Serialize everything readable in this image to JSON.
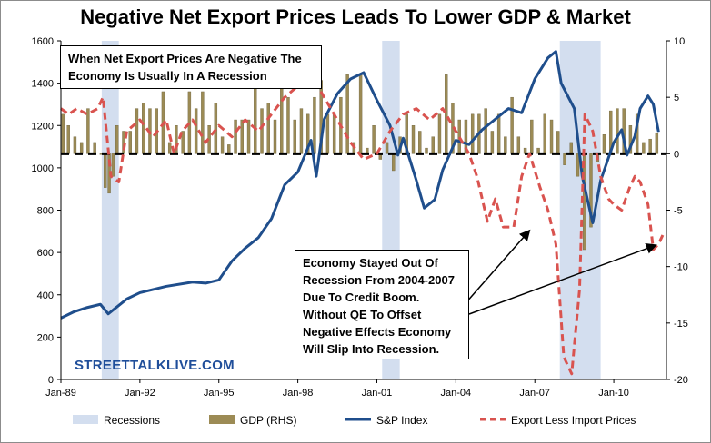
{
  "chart_data": {
    "type": "line",
    "title": "Negative Net Export Prices Leads To Lower GDP & Market",
    "x_range": [
      "1989-01",
      "2011-12"
    ],
    "x_ticks": [
      "Jan-89",
      "Jan-92",
      "Jan-95",
      "Jan-98",
      "Jan-01",
      "Jan-04",
      "Jan-07",
      "Jan-10"
    ],
    "y_left": {
      "range": [
        0,
        1600
      ],
      "ticks": [
        "0",
        "200",
        "400",
        "600",
        "800",
        "1000",
        "1200",
        "1400",
        "1600"
      ]
    },
    "y_right": {
      "range": [
        -20,
        10
      ],
      "ticks": [
        "-20",
        "-15",
        "-10",
        "-5",
        "0",
        "5",
        "10"
      ]
    },
    "zero_line_right": 0,
    "grid": false,
    "legend_position": "bottom",
    "colors": {
      "recession": "#d3deef",
      "gdp": "#9c8b55",
      "sp": "#1f4e8c",
      "export": "#d9534f"
    },
    "recessions": [
      {
        "start": 1990.55,
        "end": 1991.2
      },
      {
        "start": 2001.2,
        "end": 2001.87
      },
      {
        "start": 2007.95,
        "end": 2009.5
      }
    ],
    "series": [
      {
        "name": "S&P Index",
        "axis": "left",
        "style": "solid",
        "points": [
          [
            1989.0,
            290
          ],
          [
            1989.5,
            320
          ],
          [
            1990.0,
            340
          ],
          [
            1990.5,
            355
          ],
          [
            1990.8,
            310
          ],
          [
            1991.0,
            330
          ],
          [
            1991.5,
            380
          ],
          [
            1992.0,
            410
          ],
          [
            1993.0,
            440
          ],
          [
            1994.0,
            460
          ],
          [
            1994.5,
            455
          ],
          [
            1995.0,
            470
          ],
          [
            1995.5,
            560
          ],
          [
            1996.0,
            620
          ],
          [
            1996.5,
            670
          ],
          [
            1997.0,
            760
          ],
          [
            1997.5,
            920
          ],
          [
            1998.0,
            980
          ],
          [
            1998.5,
            1130
          ],
          [
            1998.7,
            960
          ],
          [
            1999.0,
            1230
          ],
          [
            1999.5,
            1350
          ],
          [
            2000.0,
            1420
          ],
          [
            2000.5,
            1450
          ],
          [
            2001.0,
            1320
          ],
          [
            2001.5,
            1200
          ],
          [
            2001.8,
            1060
          ],
          [
            2002.0,
            1140
          ],
          [
            2002.5,
            940
          ],
          [
            2002.8,
            810
          ],
          [
            2003.2,
            850
          ],
          [
            2003.5,
            990
          ],
          [
            2004.0,
            1130
          ],
          [
            2004.5,
            1110
          ],
          [
            2005.0,
            1180
          ],
          [
            2005.5,
            1230
          ],
          [
            2006.0,
            1280
          ],
          [
            2006.5,
            1260
          ],
          [
            2007.0,
            1420
          ],
          [
            2007.5,
            1520
          ],
          [
            2007.8,
            1550
          ],
          [
            2008.0,
            1400
          ],
          [
            2008.5,
            1280
          ],
          [
            2008.8,
            960
          ],
          [
            2009.0,
            850
          ],
          [
            2009.2,
            740
          ],
          [
            2009.5,
            940
          ],
          [
            2010.0,
            1120
          ],
          [
            2010.3,
            1180
          ],
          [
            2010.5,
            1060
          ],
          [
            2010.8,
            1150
          ],
          [
            2011.0,
            1280
          ],
          [
            2011.3,
            1340
          ],
          [
            2011.5,
            1300
          ],
          [
            2011.7,
            1170
          ]
        ]
      },
      {
        "name": "Export Less Import Prices",
        "axis": "right",
        "style": "dashed",
        "points": [
          [
            1989.0,
            4
          ],
          [
            1989.3,
            3.5
          ],
          [
            1989.6,
            4
          ],
          [
            1990.0,
            3.5
          ],
          [
            1990.4,
            4
          ],
          [
            1990.6,
            5
          ],
          [
            1990.9,
            -2
          ],
          [
            1991.2,
            -2.5
          ],
          [
            1991.5,
            2
          ],
          [
            1992.0,
            3
          ],
          [
            1992.5,
            1.5
          ],
          [
            1993.0,
            3
          ],
          [
            1993.3,
            0
          ],
          [
            1993.6,
            2
          ],
          [
            1994.0,
            3
          ],
          [
            1994.5,
            1
          ],
          [
            1995.0,
            2.5
          ],
          [
            1995.5,
            1.5
          ],
          [
            1996.0,
            3
          ],
          [
            1996.5,
            2
          ],
          [
            1997.0,
            3.5
          ],
          [
            1997.5,
            5
          ],
          [
            1998.0,
            6
          ],
          [
            1998.5,
            7
          ],
          [
            1999.0,
            5
          ],
          [
            1999.5,
            3
          ],
          [
            2000.0,
            1
          ],
          [
            2000.5,
            -0.5
          ],
          [
            2001.0,
            0
          ],
          [
            2001.5,
            2
          ],
          [
            2002.0,
            3.5
          ],
          [
            2002.5,
            4
          ],
          [
            2003.0,
            3
          ],
          [
            2003.5,
            4
          ],
          [
            2004.0,
            2
          ],
          [
            2004.5,
            0
          ],
          [
            2004.8,
            -2
          ],
          [
            2005.2,
            -6
          ],
          [
            2005.5,
            -4
          ],
          [
            2005.8,
            -6.5
          ],
          [
            2006.2,
            -6.5
          ],
          [
            2006.5,
            -2
          ],
          [
            2006.8,
            0
          ],
          [
            2007.2,
            -3
          ],
          [
            2007.5,
            -5
          ],
          [
            2007.8,
            -8
          ],
          [
            2008.1,
            -18
          ],
          [
            2008.4,
            -19.5
          ],
          [
            2008.7,
            -12
          ],
          [
            2008.9,
            3.5
          ],
          [
            2009.2,
            2
          ],
          [
            2009.5,
            -2
          ],
          [
            2009.8,
            -4
          ],
          [
            2010.0,
            -4.5
          ],
          [
            2010.3,
            -5
          ],
          [
            2010.6,
            -3
          ],
          [
            2010.8,
            -2
          ],
          [
            2011.0,
            -2.5
          ],
          [
            2011.3,
            -4.5
          ],
          [
            2011.5,
            -8.5
          ],
          [
            2011.7,
            -8
          ],
          [
            2011.9,
            -7
          ]
        ]
      },
      {
        "name": "GDP (RHS)",
        "axis": "right",
        "style": "bars",
        "points": [
          [
            1989.1,
            3.5
          ],
          [
            1989.3,
            2.5
          ],
          [
            1989.55,
            1.5
          ],
          [
            1989.8,
            1
          ],
          [
            1990.05,
            4
          ],
          [
            1990.3,
            1
          ],
          [
            1990.55,
            0
          ],
          [
            1990.7,
            -3
          ],
          [
            1990.85,
            -3.5
          ],
          [
            1991.0,
            -2
          ],
          [
            1991.15,
            2.5
          ],
          [
            1991.4,
            2
          ],
          [
            1991.65,
            2
          ],
          [
            1991.9,
            4
          ],
          [
            1992.15,
            4.5
          ],
          [
            1992.4,
            4
          ],
          [
            1992.65,
            4
          ],
          [
            1992.9,
            5.5
          ],
          [
            1993.15,
            1
          ],
          [
            1993.4,
            2.5
          ],
          [
            1993.65,
            2
          ],
          [
            1993.9,
            5.5
          ],
          [
            1994.15,
            4
          ],
          [
            1994.4,
            5.5
          ],
          [
            1994.65,
            2.5
          ],
          [
            1994.9,
            4.5
          ],
          [
            1995.15,
            1.5
          ],
          [
            1995.4,
            0.8
          ],
          [
            1995.65,
            3
          ],
          [
            1995.9,
            3
          ],
          [
            1996.15,
            3
          ],
          [
            1996.4,
            7
          ],
          [
            1996.65,
            4
          ],
          [
            1996.9,
            4.5
          ],
          [
            1997.15,
            3
          ],
          [
            1997.4,
            6
          ],
          [
            1997.65,
            5
          ],
          [
            1997.9,
            3
          ],
          [
            1998.15,
            4
          ],
          [
            1998.4,
            3.5
          ],
          [
            1998.65,
            5
          ],
          [
            1998.9,
            6.5
          ],
          [
            1999.15,
            3.5
          ],
          [
            1999.4,
            3.5
          ],
          [
            1999.65,
            5
          ],
          [
            1999.9,
            7
          ],
          [
            2000.15,
            1
          ],
          [
            2000.4,
            7
          ],
          [
            2000.65,
            0.5
          ],
          [
            2000.9,
            2.5
          ],
          [
            2001.15,
            -0.5
          ],
          [
            2001.4,
            1
          ],
          [
            2001.65,
            -1.5
          ],
          [
            2001.9,
            1.5
          ],
          [
            2002.15,
            3.5
          ],
          [
            2002.4,
            2.5
          ],
          [
            2002.65,
            2
          ],
          [
            2002.9,
            0.5
          ],
          [
            2003.15,
            1.5
          ],
          [
            2003.4,
            3.5
          ],
          [
            2003.65,
            7
          ],
          [
            2003.9,
            4.5
          ],
          [
            2004.15,
            3
          ],
          [
            2004.4,
            3
          ],
          [
            2004.65,
            3.5
          ],
          [
            2004.9,
            3.5
          ],
          [
            2005.15,
            4
          ],
          [
            2005.4,
            2
          ],
          [
            2005.65,
            3.5
          ],
          [
            2005.9,
            1.5
          ],
          [
            2006.15,
            5
          ],
          [
            2006.4,
            1.5
          ],
          [
            2006.65,
            0.5
          ],
          [
            2006.9,
            3
          ],
          [
            2007.15,
            0.5
          ],
          [
            2007.4,
            3.5
          ],
          [
            2007.65,
            3
          ],
          [
            2007.9,
            2
          ],
          [
            2008.15,
            -1
          ],
          [
            2008.4,
            1
          ],
          [
            2008.65,
            -2
          ],
          [
            2008.9,
            -8.5
          ],
          [
            2009.15,
            -6.5
          ],
          [
            2009.4,
            -0.7
          ],
          [
            2009.65,
            1.7
          ],
          [
            2009.9,
            3.8
          ],
          [
            2010.15,
            4
          ],
          [
            2010.4,
            4
          ],
          [
            2010.65,
            2.5
          ],
          [
            2010.9,
            3.5
          ],
          [
            2011.15,
            1
          ],
          [
            2011.4,
            1.3
          ],
          [
            2011.65,
            1.8
          ]
        ]
      }
    ],
    "legend": [
      "Recessions",
      "GDP (RHS)",
      "S&P Index",
      "Export Less Import Prices"
    ],
    "annotations": {
      "top_left": "When Net Export Prices Are Negative The Economy Is Usually In A Recession",
      "callout_lines": [
        "Economy Stayed Out Of",
        "Recession From 2004-2007",
        "Due To Credit Boom.",
        "Without QE To Offset",
        "Negative Effects Economy",
        "Will Slip Into Recession."
      ]
    }
  },
  "watermark": "STREETTALKLIVE.COM"
}
